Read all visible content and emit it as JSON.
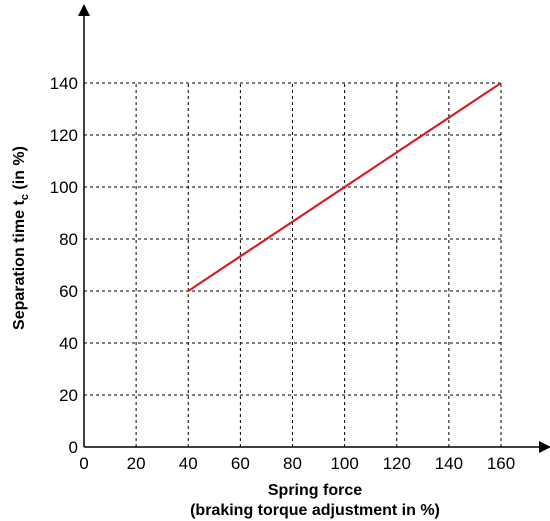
{
  "chart_data": {
    "type": "line",
    "xlabel_line1": "Spring force",
    "xlabel_line2": "(braking torque adjustment in %)",
    "ylabel_prefix": "Separation time t",
    "ylabel_subscript": "c",
    "ylabel_suffix": " (in %)",
    "x_ticks": [
      "0",
      "20",
      "40",
      "60",
      "80",
      "100",
      "120",
      "140",
      "160"
    ],
    "y_ticks": [
      "0",
      "20",
      "40",
      "60",
      "80",
      "100",
      "120",
      "140"
    ],
    "xlim": [
      0,
      160
    ],
    "ylim": [
      0,
      140
    ],
    "grid": true,
    "series": [
      {
        "x": [
          40,
          160
        ],
        "y": [
          60,
          140
        ],
        "color": "#d42020"
      }
    ]
  }
}
